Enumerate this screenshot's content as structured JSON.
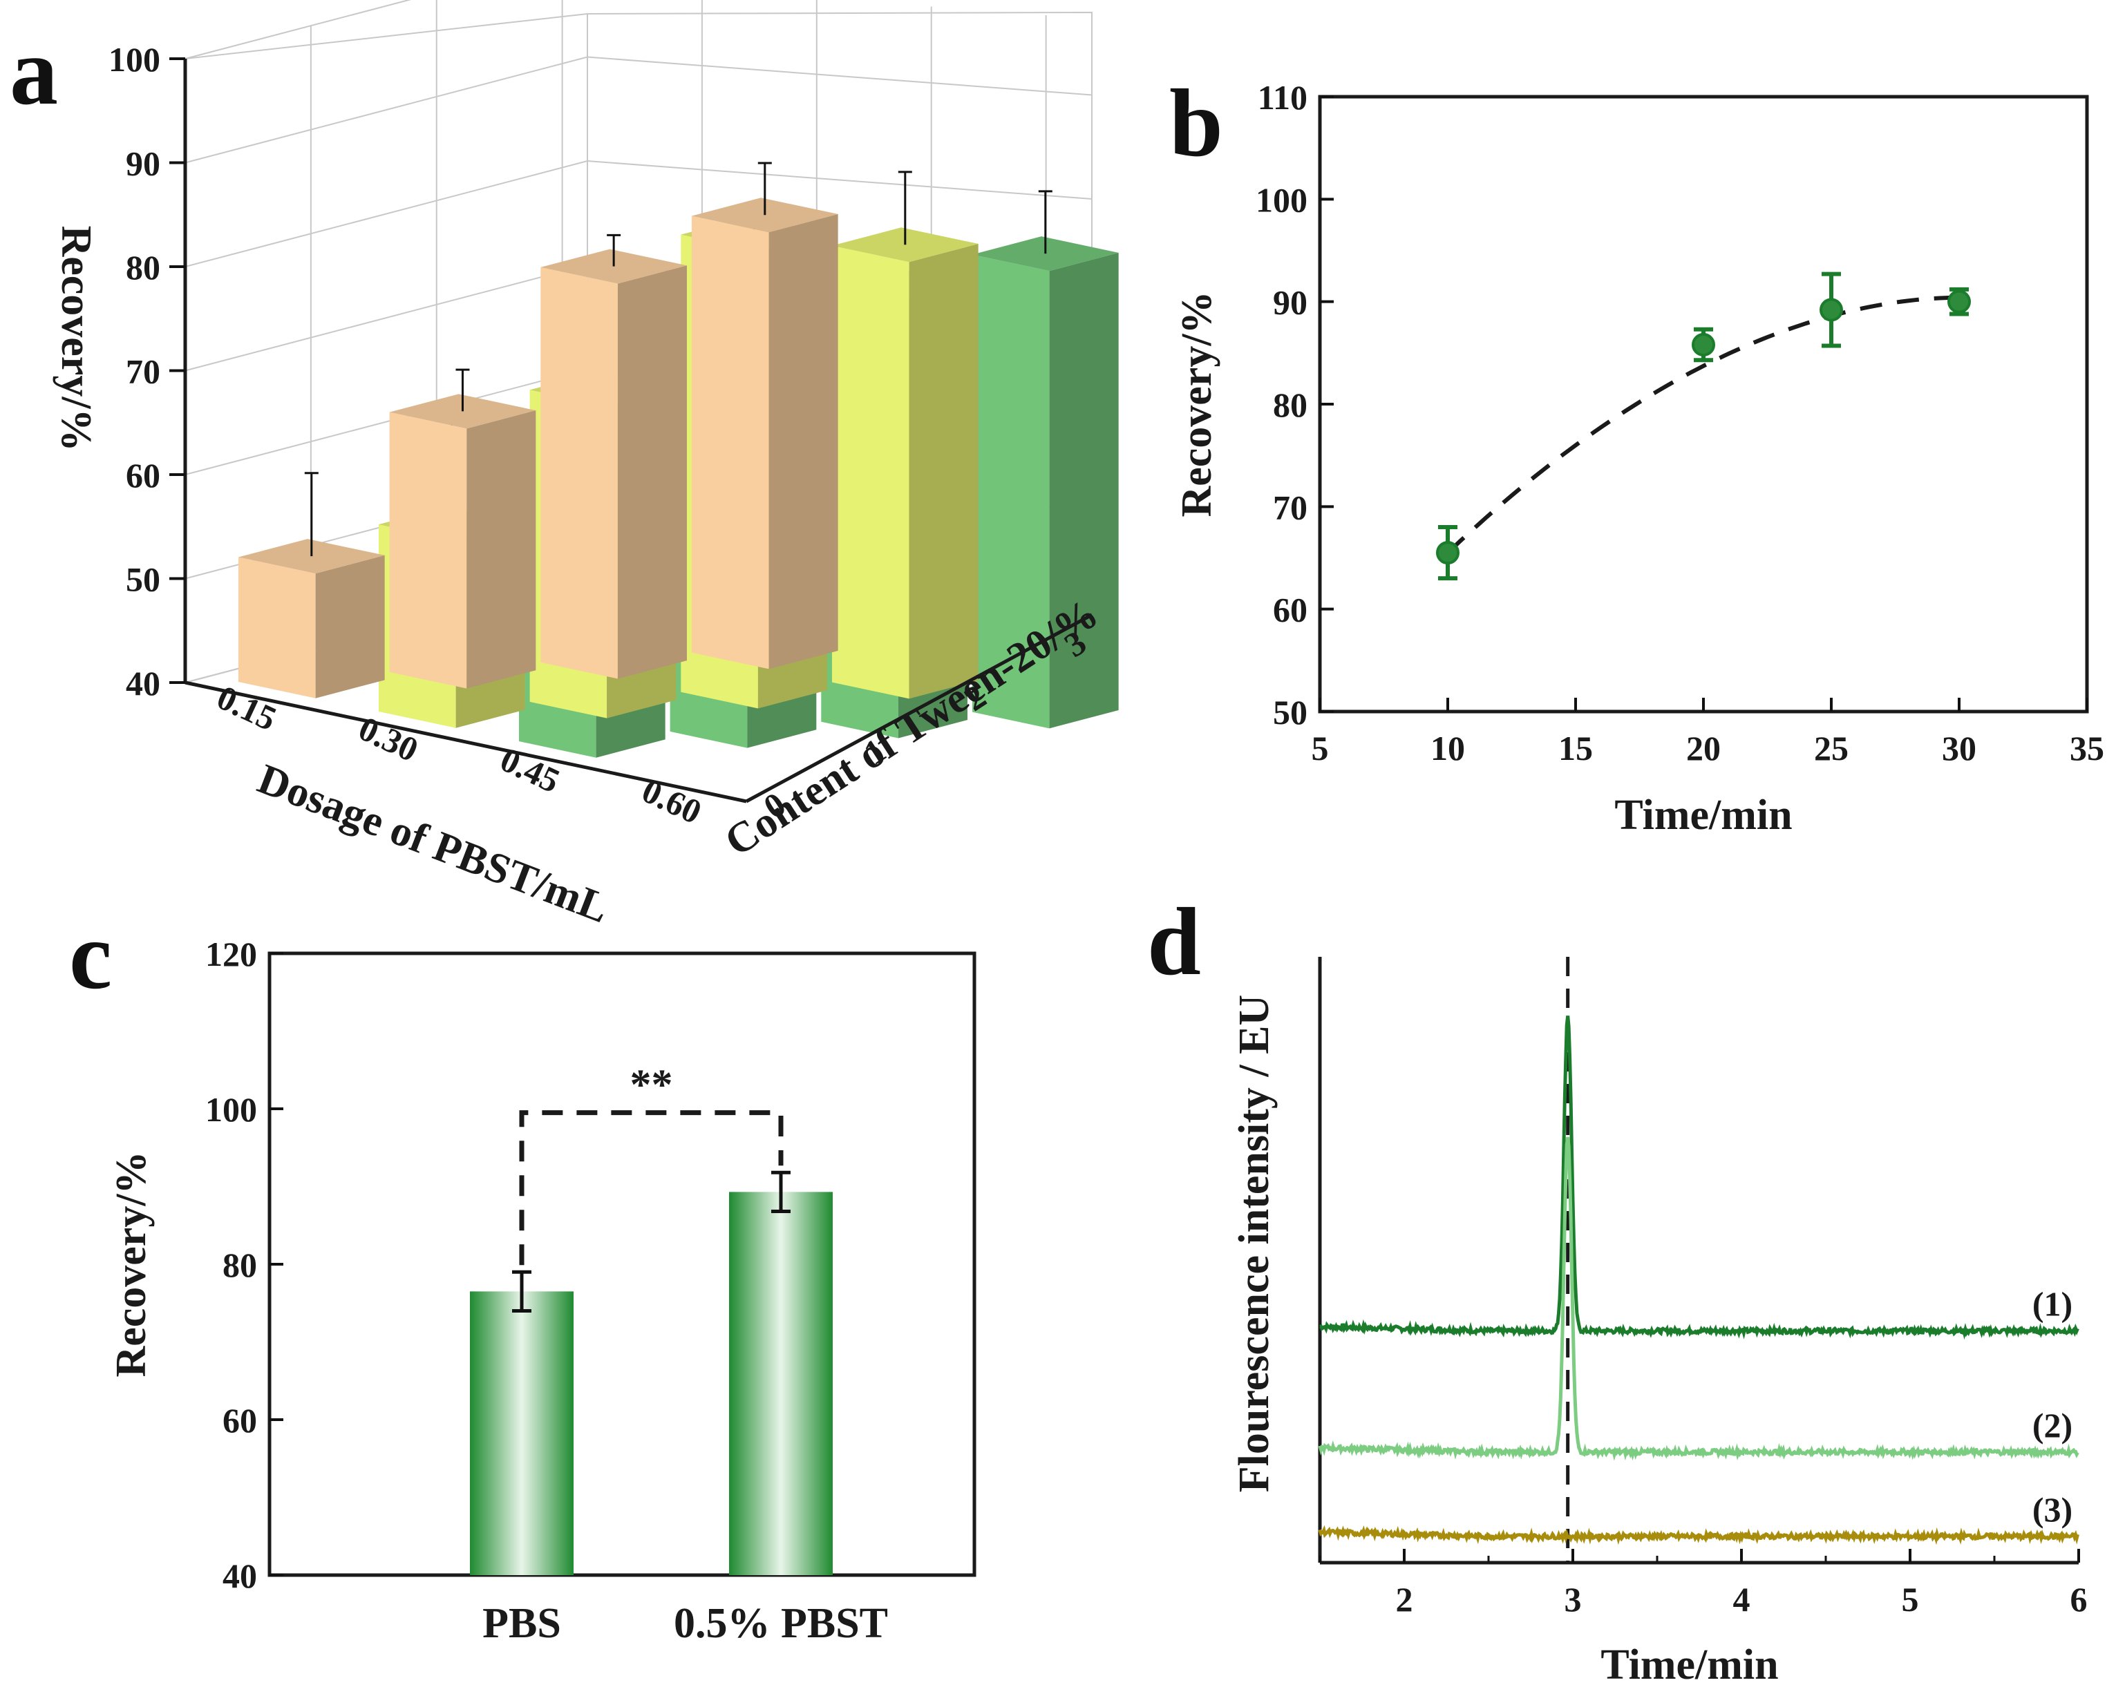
{
  "panels": {
    "a": "a",
    "b": "b",
    "c": "c",
    "d": "d"
  },
  "colors": {
    "peach": "#f9cf9f",
    "yellowgreen": "#e6f271",
    "green": "#71c478",
    "dark_green": "#1b7d2c",
    "light_green": "#7ccc82",
    "olive": "#a88c0c"
  },
  "chart_data": [
    {
      "id": "a",
      "type": "bar",
      "title": "",
      "zlabel": "Recovery/%",
      "xlabel": "Dosage of PBST/mL",
      "ylabel": "Content of Tween-20/%",
      "x_categories": [
        "0.15",
        "0.30",
        "0.45",
        "0.60"
      ],
      "y_ticks": [
        "0",
        "1",
        "2",
        "3"
      ],
      "zlim": [
        40,
        100
      ],
      "z_ticks": [
        40,
        50,
        60,
        70,
        80,
        90,
        100
      ],
      "series": [
        {
          "name": "0.15",
          "color": "peach",
          "values": [
            52,
            65,
            78,
            82
          ],
          "errors": [
            8,
            4,
            3,
            5
          ]
        },
        {
          "name": "0.30",
          "color": "yellowgreen",
          "values": [
            58,
            70,
            84,
            82
          ],
          "errors": [
            10,
            6,
            2,
            7
          ]
        },
        {
          "name": "0.45",
          "color": "green",
          "values": [
            52,
            69,
            82,
            84
          ],
          "errors": [
            4,
            7,
            0.5,
            6
          ]
        }
      ]
    },
    {
      "id": "b",
      "type": "scatter",
      "xlabel": "Time/min",
      "ylabel": "Recovery/%",
      "xlim": [
        5,
        35
      ],
      "ylim": [
        50,
        110
      ],
      "x_ticks": [
        5,
        10,
        15,
        20,
        25,
        30,
        35
      ],
      "y_ticks": [
        50,
        60,
        70,
        80,
        90,
        100,
        110
      ],
      "x": [
        10,
        20,
        25,
        30
      ],
      "y": [
        65.5,
        85.8,
        89.2,
        90
      ],
      "errors": [
        2.5,
        1.5,
        3.5,
        1.2
      ]
    },
    {
      "id": "c",
      "type": "bar",
      "ylabel": "Recovery/%",
      "categories": [
        "PBS",
        "0.5% PBST"
      ],
      "values": [
        76.5,
        89.3
      ],
      "errors": [
        2.5,
        2.5
      ],
      "ylim": [
        40,
        120
      ],
      "y_ticks": [
        40,
        60,
        80,
        100,
        120
      ],
      "significance": "**"
    },
    {
      "id": "d",
      "type": "line",
      "xlabel": "Time/min",
      "ylabel": "Flourescence intensity / EU",
      "xlim": [
        1.5,
        6
      ],
      "x_ticks": [
        2,
        3,
        4,
        5,
        6
      ],
      "peak_x": 2.97,
      "series": [
        {
          "name": "(1)",
          "color": "dark_green",
          "baseline": 88,
          "peak": 208
        },
        {
          "name": "(2)",
          "color": "light_green",
          "baseline": 42,
          "peak": 162
        },
        {
          "name": "(3)",
          "color": "olive",
          "baseline": 10,
          "peak": 0
        }
      ]
    }
  ]
}
